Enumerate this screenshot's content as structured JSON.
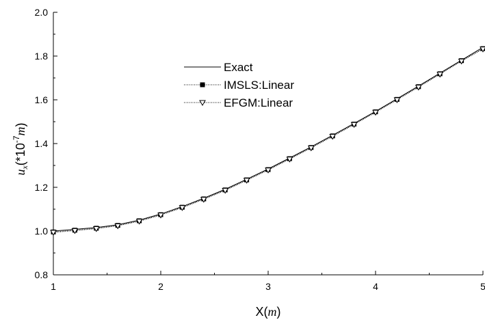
{
  "chart_data": {
    "type": "line",
    "xlabel": "X(m)",
    "xlabel_parts": {
      "text": "X(",
      "unit": "m",
      "close": ")"
    },
    "ylabel": "u_x(*10^-7 m)",
    "ylabel_parts": {
      "var": "u",
      "sub": "x",
      "open": "(*10",
      "exp": "-7",
      "unit": "m",
      "close": ")"
    },
    "xlim": [
      1,
      5
    ],
    "ylim": [
      0.8,
      2.0
    ],
    "x_ticks": [
      1,
      2,
      3,
      4,
      5
    ],
    "x_tick_labels": [
      "1",
      "2",
      "3",
      "4",
      "5"
    ],
    "y_ticks": [
      0.8,
      1.0,
      1.2,
      1.4,
      1.6,
      1.8,
      2.0
    ],
    "y_tick_labels": [
      "0.8",
      "1.0",
      "1.2",
      "1.4",
      "1.6",
      "1.8",
      "2.0"
    ],
    "grid": false,
    "legend_position": "top-center",
    "series": [
      {
        "name": "Exact",
        "style": "solid-line",
        "color": "#000000",
        "x": [
          1.0,
          1.2,
          1.4,
          1.6,
          1.8,
          2.0,
          2.2,
          2.4,
          2.6,
          2.8,
          3.0,
          3.2,
          3.4,
          3.6,
          3.8,
          4.0,
          4.2,
          4.4,
          4.6,
          4.8,
          5.0
        ],
        "y": [
          1.0,
          1.008,
          1.016,
          1.029,
          1.05,
          1.078,
          1.112,
          1.15,
          1.191,
          1.237,
          1.284,
          1.334,
          1.385,
          1.438,
          1.492,
          1.547,
          1.605,
          1.663,
          1.722,
          1.781,
          1.84
        ]
      },
      {
        "name": "IMSLS:Linear",
        "style": "dotted-square",
        "color": "#000000",
        "x": [
          1.0,
          1.2,
          1.4,
          1.6,
          1.8,
          2.0,
          2.2,
          2.4,
          2.6,
          2.8,
          3.0,
          3.2,
          3.4,
          3.6,
          3.8,
          4.0,
          4.2,
          4.4,
          4.6,
          4.8,
          5.0
        ],
        "y": [
          0.996,
          1.004,
          1.013,
          1.026,
          1.047,
          1.075,
          1.109,
          1.147,
          1.188,
          1.234,
          1.281,
          1.331,
          1.382,
          1.435,
          1.489,
          1.545,
          1.602,
          1.66,
          1.719,
          1.779,
          1.834
        ]
      },
      {
        "name": "EFGM:Linear",
        "style": "dotted-triangle",
        "color": "#000000",
        "x": [
          1.0,
          1.2,
          1.4,
          1.6,
          1.8,
          2.0,
          2.2,
          2.4,
          2.6,
          2.8,
          3.0,
          3.2,
          3.4,
          3.6,
          3.8,
          4.0,
          4.2,
          4.4,
          4.6,
          4.8,
          5.0
        ],
        "y": [
          0.994,
          1.002,
          1.011,
          1.024,
          1.045,
          1.073,
          1.107,
          1.145,
          1.186,
          1.232,
          1.279,
          1.329,
          1.38,
          1.433,
          1.487,
          1.543,
          1.6,
          1.658,
          1.717,
          1.777,
          1.832
        ]
      }
    ]
  }
}
